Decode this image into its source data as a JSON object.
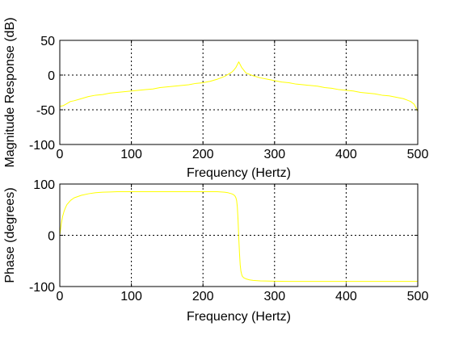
{
  "colors": {
    "background": "#ffffff",
    "plot_background": "#ffffff",
    "axis": "#000000",
    "grid": "#000000",
    "trace": "#ffff00"
  },
  "chart_data": [
    {
      "type": "line",
      "title": "",
      "xlabel": "Frequency (Hertz)",
      "ylabel": "Magnitude Response (dB)",
      "xlim": [
        0,
        500
      ],
      "ylim": [
        -100,
        50
      ],
      "xticks": [
        0,
        100,
        200,
        300,
        400,
        500
      ],
      "yticks": [
        -100,
        -50,
        0,
        50
      ],
      "xtick_labels": [
        "0",
        "100",
        "200",
        "300",
        "400",
        "500"
      ],
      "ytick_labels": [
        "-100",
        "-50",
        "0",
        "50"
      ],
      "grid": true,
      "grid_style": "dotted",
      "series": [
        {
          "color": "#ffff00",
          "x": [
            0,
            5,
            10,
            15,
            20,
            30,
            40,
            50,
            60,
            70,
            80,
            90,
            100,
            110,
            120,
            130,
            140,
            150,
            160,
            170,
            180,
            190,
            200,
            210,
            220,
            225,
            230,
            235,
            240,
            243,
            246,
            248,
            250,
            252,
            254,
            257,
            260,
            265,
            270,
            280,
            290,
            300,
            310,
            320,
            330,
            340,
            350,
            360,
            370,
            380,
            390,
            400,
            410,
            420,
            430,
            440,
            450,
            460,
            470,
            480,
            485,
            490,
            495,
            500
          ],
          "y": [
            -45,
            -44,
            -41,
            -38,
            -37,
            -34,
            -31,
            -29,
            -28,
            -26,
            -25,
            -24,
            -23,
            -22,
            -21,
            -20,
            -18,
            -17,
            -16,
            -15,
            -14,
            -12,
            -11,
            -9,
            -6,
            -4,
            -2,
            1,
            4,
            7,
            11,
            15,
            19,
            15,
            11,
            7,
            3,
            1,
            -1,
            -4,
            -6,
            -8,
            -10,
            -11,
            -13,
            -14,
            -15,
            -16,
            -18,
            -19,
            -21,
            -22,
            -23,
            -25,
            -26,
            -27,
            -29,
            -30,
            -32,
            -34,
            -36,
            -38,
            -42,
            -52
          ]
        }
      ]
    },
    {
      "type": "line",
      "title": "",
      "xlabel": "Frequency (Hertz)",
      "ylabel": "Phase (degrees)",
      "xlim": [
        0,
        500
      ],
      "ylim": [
        -100,
        100
      ],
      "xticks": [
        0,
        100,
        200,
        300,
        400,
        500
      ],
      "yticks": [
        -100,
        0,
        100
      ],
      "xtick_labels": [
        "0",
        "100",
        "200",
        "300",
        "400",
        "500"
      ],
      "ytick_labels": [
        "-100",
        "0",
        "100"
      ],
      "grid": true,
      "grid_style": "dotted",
      "series": [
        {
          "color": "#ffff00",
          "x": [
            0,
            2,
            4,
            6,
            8,
            10,
            15,
            20,
            30,
            40,
            50,
            60,
            70,
            80,
            90,
            100,
            120,
            140,
            160,
            180,
            200,
            220,
            230,
            235,
            240,
            243,
            245,
            246,
            247,
            248,
            249,
            250,
            251,
            252,
            253,
            254,
            255,
            257,
            260,
            265,
            270,
            280,
            300,
            320,
            350,
            400,
            450,
            500
          ],
          "y": [
            0,
            22,
            37,
            47,
            54,
            60,
            68,
            73,
            78,
            81,
            83,
            84,
            84.5,
            85,
            85,
            85,
            85,
            85,
            85,
            85,
            85,
            85,
            84,
            83,
            81,
            79,
            76,
            73,
            68,
            55,
            30,
            -5,
            -35,
            -58,
            -70,
            -76,
            -80,
            -83,
            -85,
            -87,
            -88,
            -89,
            -89.5,
            -90,
            -90,
            -90,
            -90,
            -90
          ]
        }
      ]
    }
  ]
}
